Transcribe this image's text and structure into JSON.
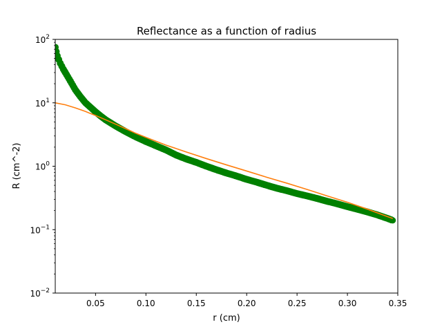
{
  "chart_data": {
    "type": "scatter",
    "title": "Reflectance as a function of radius",
    "xlabel": "r (cm)",
    "ylabel": "R (cm^-2)",
    "xlim": [
      0.01,
      0.35
    ],
    "ylim": [
      0.01,
      100
    ],
    "yscale": "log",
    "grid": false,
    "x_ticks": [
      0.05,
      0.1,
      0.15,
      0.2,
      0.25,
      0.3,
      0.35
    ],
    "x_tick_labels": [
      "0.05",
      "0.10",
      "0.15",
      "0.20",
      "0.25",
      "0.30",
      "0.35"
    ],
    "y_ticks": [
      0.01,
      0.1,
      1,
      10,
      100
    ],
    "y_tick_labels": [
      {
        "base": "10",
        "exp": "−2"
      },
      {
        "base": "10",
        "exp": "−1"
      },
      {
        "base": "10",
        "exp": "0"
      },
      {
        "base": "10",
        "exp": "1"
      },
      {
        "base": "10",
        "exp": "2"
      }
    ],
    "series": [
      {
        "style": "markers",
        "color": "#008000",
        "x": [
          0.01,
          0.012,
          0.015,
          0.018,
          0.02,
          0.025,
          0.03,
          0.035,
          0.04,
          0.045,
          0.05,
          0.055,
          0.06,
          0.07,
          0.08,
          0.09,
          0.1,
          0.11,
          0.12,
          0.13,
          0.14,
          0.15,
          0.16,
          0.17,
          0.18,
          0.19,
          0.2,
          0.21,
          0.22,
          0.23,
          0.24,
          0.25,
          0.26,
          0.27,
          0.28,
          0.29,
          0.3,
          0.31,
          0.32,
          0.33,
          0.34,
          0.345
        ],
        "y": [
          75,
          55,
          42,
          34,
          30,
          22,
          16,
          12.5,
          10,
          8.5,
          7.2,
          6.2,
          5.4,
          4.3,
          3.5,
          2.9,
          2.45,
          2.1,
          1.8,
          1.5,
          1.3,
          1.15,
          1.0,
          0.88,
          0.78,
          0.7,
          0.62,
          0.56,
          0.5,
          0.45,
          0.41,
          0.37,
          0.34,
          0.31,
          0.28,
          0.255,
          0.23,
          0.21,
          0.19,
          0.17,
          0.15,
          0.14
        ]
      },
      {
        "style": "line",
        "color": "#ff7f0e",
        "x": [
          0.01,
          0.02,
          0.03,
          0.04,
          0.05,
          0.06,
          0.07,
          0.08,
          0.09,
          0.1,
          0.12,
          0.14,
          0.16,
          0.18,
          0.2,
          0.22,
          0.24,
          0.26,
          0.28,
          0.3,
          0.32,
          0.34,
          0.345
        ],
        "y": [
          10,
          9.3,
          8.3,
          7.3,
          6.3,
          5.4,
          4.6,
          3.9,
          3.3,
          2.85,
          2.15,
          1.68,
          1.32,
          1.05,
          0.84,
          0.67,
          0.54,
          0.43,
          0.34,
          0.27,
          0.21,
          0.16,
          0.15
        ]
      }
    ]
  }
}
